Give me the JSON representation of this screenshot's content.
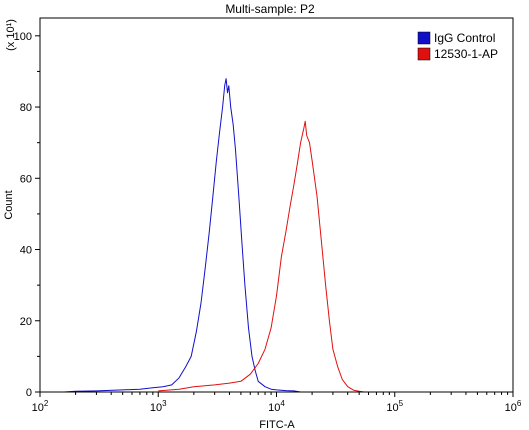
{
  "chart_data": {
    "type": "line",
    "title": "Multi-sample: P2",
    "xlabel": "FITC-A",
    "ylabel": "Count",
    "y_multiplier_label": "(x 10¹)",
    "x_scale": "log",
    "xlim": [
      100,
      1000000
    ],
    "ylim": [
      0,
      105
    ],
    "x_ticks": [
      {
        "value": 100,
        "base": "10",
        "exp": "2"
      },
      {
        "value": 1000,
        "base": "10",
        "exp": "3"
      },
      {
        "value": 10000,
        "base": "10",
        "exp": "4"
      },
      {
        "value": 100000,
        "base": "10",
        "exp": "5"
      },
      {
        "value": 1000000,
        "base": "10",
        "exp": "6"
      }
    ],
    "y_ticks": [
      0,
      20,
      40,
      60,
      80,
      100
    ],
    "legend": {
      "placement": "top-right"
    },
    "series": [
      {
        "name": "IgG Control",
        "color": "#1010c8",
        "points": [
          [
            160,
            0
          ],
          [
            200,
            0.2
          ],
          [
            300,
            0.3
          ],
          [
            500,
            0.6
          ],
          [
            700,
            0.8
          ],
          [
            900,
            1.2
          ],
          [
            1100,
            1.5
          ],
          [
            1300,
            2
          ],
          [
            1500,
            4
          ],
          [
            1700,
            7
          ],
          [
            1900,
            10
          ],
          [
            2100,
            17
          ],
          [
            2300,
            25
          ],
          [
            2500,
            35
          ],
          [
            2700,
            45
          ],
          [
            2900,
            55
          ],
          [
            3100,
            65
          ],
          [
            3300,
            73
          ],
          [
            3500,
            80
          ],
          [
            3650,
            86
          ],
          [
            3750,
            88
          ],
          [
            3850,
            84
          ],
          [
            3950,
            86
          ],
          [
            4100,
            80
          ],
          [
            4300,
            75
          ],
          [
            4500,
            68
          ],
          [
            4800,
            55
          ],
          [
            5100,
            42
          ],
          [
            5400,
            30
          ],
          [
            5800,
            18
          ],
          [
            6200,
            10
          ],
          [
            6600,
            6
          ],
          [
            7000,
            3
          ],
          [
            8000,
            1.5
          ],
          [
            9000,
            0.8
          ],
          [
            10000,
            0.6
          ],
          [
            12000,
            0.4
          ],
          [
            14000,
            0.3
          ],
          [
            16000,
            0
          ]
        ]
      },
      {
        "name": "12530-1-AP",
        "color": "#e01010",
        "points": [
          [
            1000,
            0.3
          ],
          [
            1500,
            0.8
          ],
          [
            2000,
            1.5
          ],
          [
            3000,
            2.0
          ],
          [
            4000,
            2.5
          ],
          [
            5000,
            3
          ],
          [
            6000,
            5
          ],
          [
            7000,
            8
          ],
          [
            8000,
            12
          ],
          [
            9000,
            18
          ],
          [
            10000,
            27
          ],
          [
            11000,
            38
          ],
          [
            12000,
            45
          ],
          [
            13000,
            52
          ],
          [
            14000,
            58
          ],
          [
            15000,
            64
          ],
          [
            16000,
            70
          ],
          [
            17000,
            74
          ],
          [
            17500,
            76
          ],
          [
            18000,
            72
          ],
          [
            19000,
            70
          ],
          [
            20000,
            65
          ],
          [
            22000,
            55
          ],
          [
            24000,
            42
          ],
          [
            26000,
            30
          ],
          [
            28000,
            20
          ],
          [
            30000,
            12
          ],
          [
            33000,
            7
          ],
          [
            36000,
            3.5
          ],
          [
            40000,
            1.5
          ],
          [
            45000,
            0.5
          ],
          [
            50000,
            0.2
          ],
          [
            55000,
            0
          ]
        ]
      }
    ]
  }
}
